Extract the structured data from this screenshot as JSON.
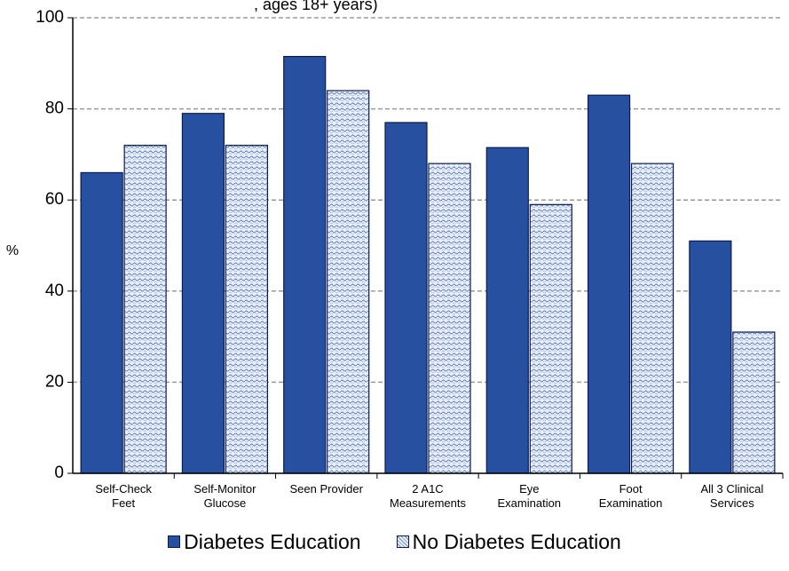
{
  "chart_data": {
    "type": "bar",
    "title_fragment": ", ages 18+ years)",
    "ylabel": "%",
    "ylim": [
      0,
      100
    ],
    "yticks": [
      0,
      20,
      40,
      60,
      80,
      100
    ],
    "grid": true,
    "legend_position": "bottom",
    "categories": [
      [
        "Self-Check",
        "Feet"
      ],
      [
        "Self-Monitor",
        "Glucose"
      ],
      [
        "Seen Provider"
      ],
      [
        "2 A1C",
        "Measurements"
      ],
      [
        "Eye",
        "Examination"
      ],
      [
        "Foot",
        "Examination"
      ],
      [
        "All 3 Clinical",
        "Services"
      ]
    ],
    "series": [
      {
        "name": "Diabetes Education",
        "values": [
          66,
          79,
          91.5,
          77,
          71.5,
          83,
          51
        ],
        "color": "#2750a0",
        "pattern": "solid"
      },
      {
        "name": "No Diabetes Education",
        "values": [
          72,
          72,
          84,
          68,
          59,
          68,
          31
        ],
        "color": "#dfe8f5",
        "pattern": "stipple"
      }
    ]
  }
}
